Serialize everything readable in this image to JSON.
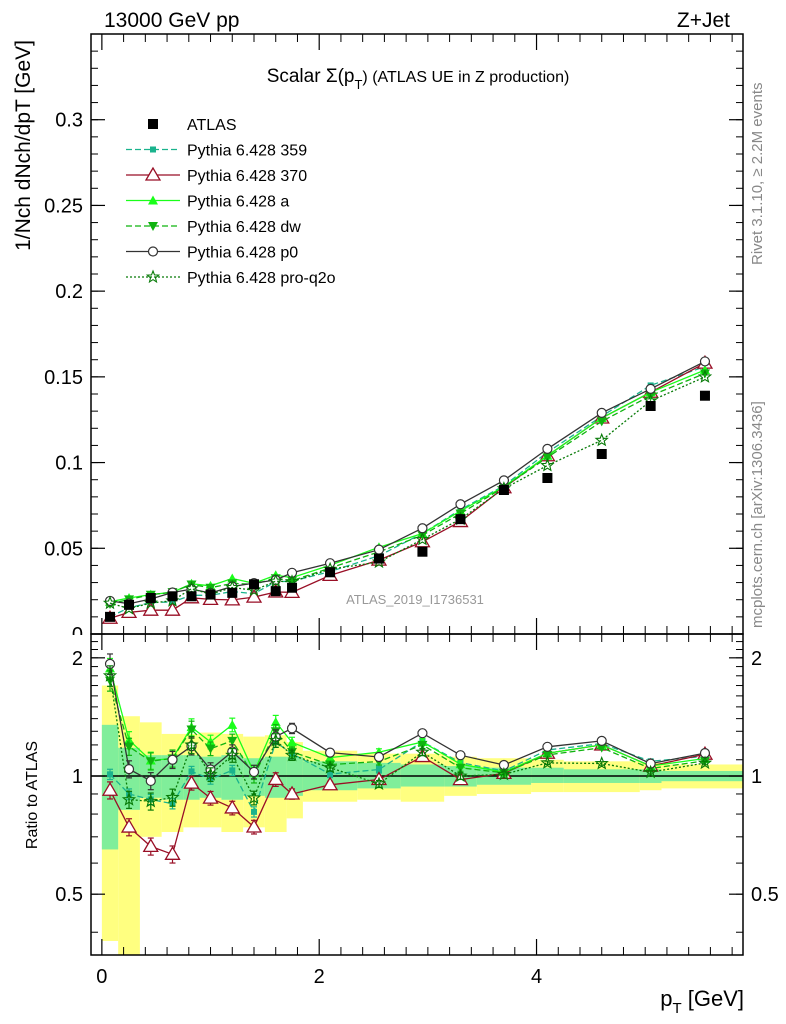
{
  "header": {
    "energy": "13000 GeV pp",
    "process": "Z+Jet"
  },
  "side_text": {
    "rivet": "Rivet 3.1.10, ≥ 2.2M events",
    "mcplots": "mcplots.cern.ch [arXiv:1306.3436]"
  },
  "analysis_id": "ATLAS_2019_I1736531",
  "chart_data": {
    "type": "line",
    "title": "Scalar Σ(pT) (ATLAS UE in Z production)",
    "title_parts": {
      "prefix": "Scalar Σ(p",
      "sub": "T",
      "suffix": ") (ATLAS UE in Z production)"
    },
    "xlabel": "pT [GeV]",
    "xlabel_parts": {
      "main": "p",
      "sub": "T",
      "unit": " [GeV]"
    },
    "ylabel": "1/Nch dNch/dpT [GeV]",
    "ratio_ylabel": "Ratio to ATLAS",
    "xlim": [
      -0.1,
      5.9
    ],
    "ylim": [
      0,
      0.35
    ],
    "ratio_ylim": [
      0.35,
      2.3
    ],
    "main_yticks": [
      "0",
      "0.05",
      "0.1",
      "0.15",
      "0.2",
      "0.25",
      "0.3"
    ],
    "ratio_yticks": [
      "0.5",
      "1",
      "2"
    ],
    "xticks": [
      "0",
      "2",
      "4"
    ],
    "x": [
      0.075,
      0.25,
      0.45,
      0.65,
      0.825,
      1.0,
      1.2,
      1.4,
      1.6,
      1.75,
      2.1,
      2.55,
      2.95,
      3.3,
      3.7,
      4.1,
      4.6,
      5.05,
      5.55
    ],
    "x_edges": [
      0.0,
      0.15,
      0.35,
      0.55,
      0.75,
      0.9,
      1.1,
      1.3,
      1.5,
      1.7,
      1.85,
      2.35,
      2.75,
      3.15,
      3.45,
      3.95,
      4.25,
      4.95,
      5.15,
      5.9
    ],
    "data": {
      "name": "ATLAS",
      "values": [
        0.01,
        0.017,
        0.021,
        0.022,
        0.022,
        0.023,
        0.024,
        0.029,
        0.025,
        0.027,
        0.036,
        0.044,
        0.048,
        0.067,
        0.084,
        0.091,
        0.105,
        0.133,
        0.139
      ]
    },
    "band_inner": [
      [
        0.65,
        1.35
      ],
      [
        0.82,
        1.18
      ],
      [
        0.88,
        1.13
      ],
      [
        0.87,
        1.13
      ],
      [
        0.87,
        1.13
      ],
      [
        0.88,
        1.12
      ],
      [
        0.87,
        1.13
      ],
      [
        0.89,
        1.11
      ],
      [
        0.88,
        1.12
      ],
      [
        0.89,
        1.12
      ],
      [
        0.92,
        1.09
      ],
      [
        0.93,
        1.08
      ],
      [
        0.94,
        1.07
      ],
      [
        0.94,
        1.06
      ],
      [
        0.95,
        1.05
      ],
      [
        0.96,
        1.05
      ],
      [
        0.96,
        1.04
      ],
      [
        0.96,
        1.04
      ],
      [
        0.97,
        1.03
      ]
    ],
    "band_outer": [
      [
        0.38,
        1.7
      ],
      [
        0.35,
        1.42
      ],
      [
        0.7,
        1.37
      ],
      [
        0.72,
        1.28
      ],
      [
        0.74,
        1.28
      ],
      [
        0.74,
        1.29
      ],
      [
        0.72,
        1.28
      ],
      [
        0.74,
        1.26
      ],
      [
        0.72,
        1.27
      ],
      [
        0.78,
        1.22
      ],
      [
        0.86,
        1.16
      ],
      [
        0.87,
        1.14
      ],
      [
        0.86,
        1.14
      ],
      [
        0.89,
        1.12
      ],
      [
        0.9,
        1.11
      ],
      [
        0.91,
        1.1
      ],
      [
        0.91,
        1.09
      ],
      [
        0.92,
        1.08
      ],
      [
        0.93,
        1.07
      ]
    ],
    "series": [
      {
        "name": "Pythia 6.428 359",
        "color": "#1ab38d",
        "dash": "6,3",
        "marker": "square-small",
        "values": [
          0.0101,
          0.0153,
          0.0183,
          0.0187,
          0.0226,
          0.0226,
          0.0248,
          0.0235,
          0.0305,
          0.0308,
          0.0364,
          0.0457,
          0.0587,
          0.0725,
          0.0865,
          0.106,
          0.127,
          0.145,
          0.156
        ],
        "ratio_err": [
          0.03,
          0.03,
          0.03,
          0.03,
          0.03,
          0.03,
          0.03,
          0.03,
          0.03,
          0.03,
          0.02,
          0.02,
          0.02,
          0.02,
          0.02,
          0.01,
          0.01,
          0.01,
          0.01
        ]
      },
      {
        "name": "Pythia 6.428 370",
        "color": "#990f26",
        "dash": "",
        "marker": "triangle-open",
        "values": [
          0.0092,
          0.0126,
          0.0139,
          0.0139,
          0.0211,
          0.0202,
          0.0199,
          0.0215,
          0.0245,
          0.0243,
          0.0342,
          0.0431,
          0.0538,
          0.0656,
          0.0853,
          0.104,
          0.126,
          0.141,
          0.158
        ],
        "ratio_err": [
          0.05,
          0.05,
          0.05,
          0.05,
          0.04,
          0.04,
          0.04,
          0.04,
          0.04,
          0.03,
          0.02,
          0.02,
          0.02,
          0.02,
          0.02,
          0.01,
          0.01,
          0.01,
          0.01
        ]
      },
      {
        "name": "Pythia 6.428 a",
        "color": "#1aff1a",
        "dash": "",
        "marker": "triangle-filled",
        "values": [
          0.0188,
          0.021,
          0.023,
          0.0244,
          0.0293,
          0.0281,
          0.0324,
          0.0296,
          0.0343,
          0.0329,
          0.0401,
          0.0506,
          0.0586,
          0.0718,
          0.0859,
          0.104,
          0.126,
          0.141,
          0.154
        ],
        "ratio_err": [
          0.06,
          0.05,
          0.05,
          0.05,
          0.05,
          0.04,
          0.04,
          0.04,
          0.04,
          0.03,
          0.02,
          0.02,
          0.02,
          0.02,
          0.02,
          0.01,
          0.01,
          0.01,
          0.01
        ]
      },
      {
        "name": "Pythia 6.428 dw",
        "color": "#0fb30f",
        "dash": "6,3",
        "marker": "triangle-down",
        "values": [
          0.0175,
          0.0202,
          0.0229,
          0.0244,
          0.0289,
          0.027,
          0.0295,
          0.029,
          0.0325,
          0.0311,
          0.0385,
          0.0479,
          0.0576,
          0.0703,
          0.0856,
          0.103,
          0.124,
          0.139,
          0.152
        ],
        "ratio_err": [
          0.06,
          0.05,
          0.05,
          0.05,
          0.05,
          0.04,
          0.04,
          0.04,
          0.04,
          0.03,
          0.02,
          0.02,
          0.02,
          0.02,
          0.02,
          0.01,
          0.01,
          0.01,
          0.01
        ]
      },
      {
        "name": "Pythia 6.428 p0",
        "color": "#333333",
        "dash": "",
        "marker": "circle-open",
        "values": [
          0.0193,
          0.0177,
          0.0204,
          0.0242,
          0.0262,
          0.0239,
          0.0277,
          0.0297,
          0.0315,
          0.0357,
          0.0413,
          0.0492,
          0.0617,
          0.0757,
          0.0896,
          0.108,
          0.129,
          0.143,
          0.159
        ],
        "ratio_err": [
          0.06,
          0.05,
          0.05,
          0.05,
          0.05,
          0.04,
          0.04,
          0.04,
          0.04,
          0.03,
          0.02,
          0.02,
          0.02,
          0.02,
          0.02,
          0.01,
          0.01,
          0.01,
          0.01
        ]
      },
      {
        "name": "Pythia 6.428 pro-q2o",
        "color": "#077a07",
        "dash": "2,2",
        "marker": "star-open",
        "values": [
          0.018,
          0.0148,
          0.0181,
          0.0194,
          0.0264,
          0.0232,
          0.0271,
          0.0255,
          0.0308,
          0.0305,
          0.0378,
          0.042,
          0.0552,
          0.067,
          0.0848,
          0.0983,
          0.113,
          0.136,
          0.15
        ],
        "ratio_err": [
          0.06,
          0.05,
          0.05,
          0.05,
          0.05,
          0.04,
          0.04,
          0.04,
          0.04,
          0.03,
          0.02,
          0.02,
          0.02,
          0.02,
          0.02,
          0.01,
          0.01,
          0.01,
          0.01
        ]
      }
    ]
  }
}
